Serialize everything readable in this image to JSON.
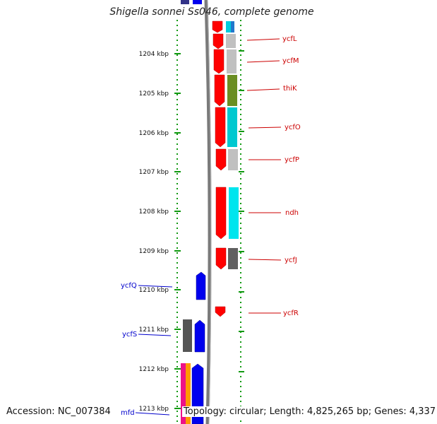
{
  "header": {
    "title": "Shigella sonnei Ss046, complete genome"
  },
  "footer": {
    "accession": "Accession: NC_007384",
    "summary": "Topology: circular; Length: 4,825,265 bp; Genes: 4,337"
  },
  "ruler": {
    "ticks": [
      "1204 kbp",
      "1205 kbp",
      "1206 kbp",
      "1207 kbp",
      "1208 kbp",
      "1209 kbp",
      "1210 kbp",
      "1211 kbp",
      "1212 kbp",
      "1213 kbp"
    ]
  },
  "genes_forward": [
    {
      "name": "ycfL",
      "color": "#ff0000",
      "cog": "#00ccdd"
    },
    {
      "name": "ycfM",
      "color": "#ff0000",
      "cog": "#c0c0c0"
    },
    {
      "name": "thiK",
      "color": "#ff0000",
      "cog": "#6b8e23"
    },
    {
      "name": "ycfO",
      "color": "#ff0000",
      "cog": "#00c8d0"
    },
    {
      "name": "ycfP",
      "color": "#ff0000",
      "cog": "#c0c0c0"
    },
    {
      "name": "ndh",
      "color": "#ff0000",
      "cog": "#00e5ee"
    },
    {
      "name": "ycfJ",
      "color": "#ff0000",
      "cog": "#606060"
    },
    {
      "name": "ycfR",
      "color": "#ff0000",
      "cog": ""
    }
  ],
  "genes_reverse": [
    {
      "name": "ycfQ",
      "color": "#0000ee"
    },
    {
      "name": "ycfS",
      "color": "#0000ee"
    },
    {
      "name": "mfd",
      "color": "#0000ee"
    }
  ]
}
